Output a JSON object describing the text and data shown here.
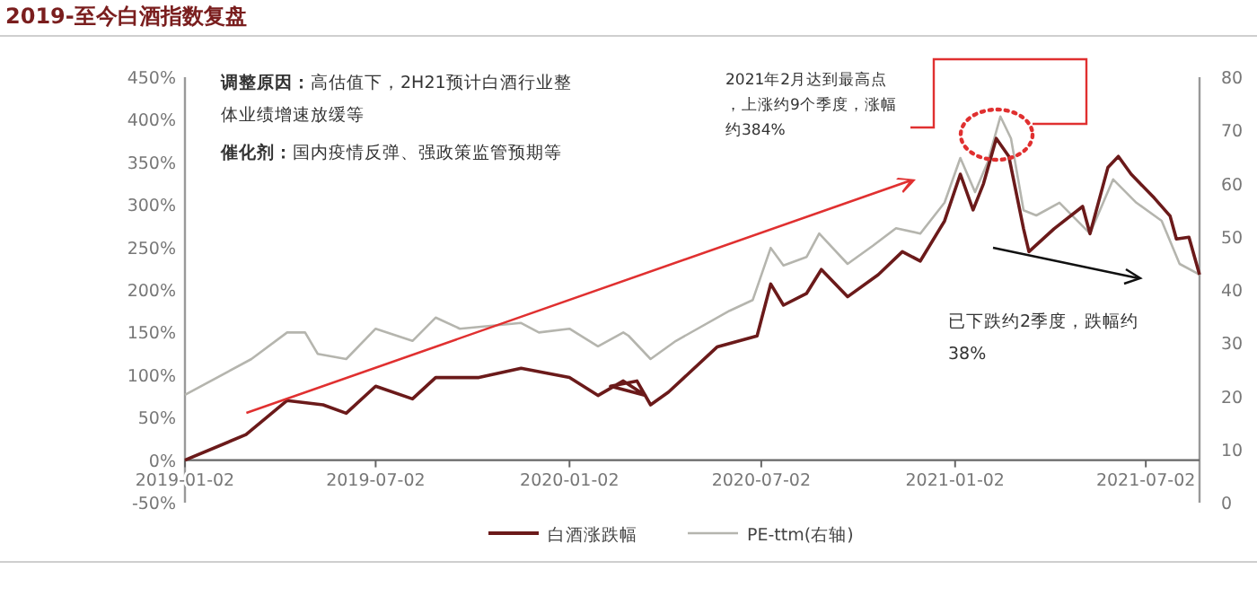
{
  "chart_data": {
    "type": "line",
    "title": "2019-至今白酒指数复盘",
    "annotations": [
      "调整原因：高估值下，2H21预计白酒行业整体业绩增速放缓等",
      "催化剂：国内疫情反弹、强政策监管预期等",
      "2021年2月达到最高点，上涨约9个季度，涨幅约384%",
      "已下跌约2季度，跌幅约38%"
    ],
    "xlim": [
      "2019-01-02",
      "2021-08-22"
    ],
    "xticks": [
      "2019-01-02",
      "2019-07-02",
      "2020-01-02",
      "2020-07-02",
      "2021-01-02",
      "2021-07-02"
    ],
    "ylim": [
      -50,
      450
    ],
    "yticks": [
      {
        "value": -50,
        "label": "-50%"
      },
      {
        "value": 0,
        "label": "0%"
      },
      {
        "value": 50,
        "label": "50%"
      },
      {
        "value": 100,
        "label": "100%"
      },
      {
        "value": 150,
        "label": "150%"
      },
      {
        "value": 200,
        "label": "200%"
      },
      {
        "value": 250,
        "label": "250%"
      },
      {
        "value": 300,
        "label": "300%"
      },
      {
        "value": 350,
        "label": "350%"
      },
      {
        "value": 400,
        "label": "400%"
      },
      {
        "value": 450,
        "label": "450%"
      }
    ],
    "y2lim": [
      0,
      80
    ],
    "y2ticks": [
      0,
      10,
      20,
      30,
      40,
      50,
      60,
      70,
      80
    ],
    "legend": "bottom",
    "grid": false,
    "marker": "none",
    "line_style": "solid",
    "series": [
      {
        "name": "白酒涨跌幅",
        "color": "#6b1a1a",
        "x": [
          "2019-01-02",
          "2019-03-01",
          "2019-04-09",
          "2019-05-13",
          "2019-06-04",
          "2019-07-02",
          "2019-08-06",
          "2019-08-28",
          "2019-10-08",
          "2019-11-17",
          "2020-01-02",
          "2020-01-29",
          "2020-02-22",
          "2020-03-14",
          "2020-02-10",
          "2020-03-06",
          "2020-03-19",
          "2020-04-05",
          "2020-05-21",
          "2020-06-28",
          "2020-07-11",
          "2020-07-23",
          "2020-08-14",
          "2020-08-28",
          "2020-09-22",
          "2020-10-21",
          "2020-11-13",
          "2020-11-30",
          "2020-12-23",
          "2021-01-07",
          "2021-01-19",
          "2021-01-29",
          "2021-02-10",
          "2021-02-22",
          "2021-03-08",
          "2021-03-13",
          "2021-04-06",
          "2021-05-03",
          "2021-05-10",
          "2021-05-27",
          "2021-06-06",
          "2021-06-18",
          "2021-07-10",
          "2021-07-25",
          "2021-07-31",
          "2021-08-12",
          "2021-08-22"
        ],
        "values": [
          0,
          30,
          70,
          65,
          55,
          87,
          72,
          97,
          97,
          108,
          97,
          76,
          93,
          76,
          87,
          93,
          65,
          80,
          133,
          146,
          207,
          182,
          196,
          224,
          192,
          218,
          245,
          234,
          281,
          336,
          294,
          325,
          378,
          357,
          272,
          245,
          272,
          298,
          266,
          344,
          357,
          336,
          308,
          287,
          260,
          262,
          218
        ]
      },
      {
        "name": "PE-ttm(右轴)",
        "color": "#b5b5ae",
        "axis": "y2",
        "x": [
          "2019-01-02",
          "2019-03-06",
          "2019-04-09",
          "2019-04-26",
          "2019-05-08",
          "2019-06-04",
          "2019-07-02",
          "2019-08-06",
          "2019-08-28",
          "2019-09-20",
          "2019-11-17",
          "2019-12-04",
          "2020-01-02",
          "2020-01-29",
          "2020-02-22",
          "2020-02-27",
          "2020-03-19",
          "2020-04-12",
          "2020-06-02",
          "2020-06-24",
          "2020-07-11",
          "2020-07-23",
          "2020-08-14",
          "2020-08-26",
          "2020-09-22",
          "2020-10-16",
          "2020-11-07",
          "2020-11-30",
          "2020-12-23",
          "2021-01-07",
          "2021-01-21",
          "2021-02-02",
          "2021-02-14",
          "2021-02-24",
          "2021-03-08",
          "2021-03-20",
          "2021-04-11",
          "2021-05-10",
          "2021-06-01",
          "2021-06-23",
          "2021-07-17",
          "2021-08-03",
          "2021-08-22"
        ],
        "values": [
          20.3,
          27,
          32,
          32,
          28,
          27,
          32.7,
          30.4,
          34.8,
          32.7,
          33.8,
          32,
          32.7,
          29.4,
          32,
          31.4,
          27,
          30.4,
          36.1,
          38.1,
          47.9,
          44.6,
          46.2,
          50.6,
          44.9,
          48.3,
          51.6,
          50.6,
          56.4,
          64.8,
          58.4,
          64.1,
          72.6,
          68.5,
          55,
          54,
          56.4,
          50.6,
          60.8,
          56.4,
          53,
          44.9,
          42.9
        ]
      }
    ]
  }
}
